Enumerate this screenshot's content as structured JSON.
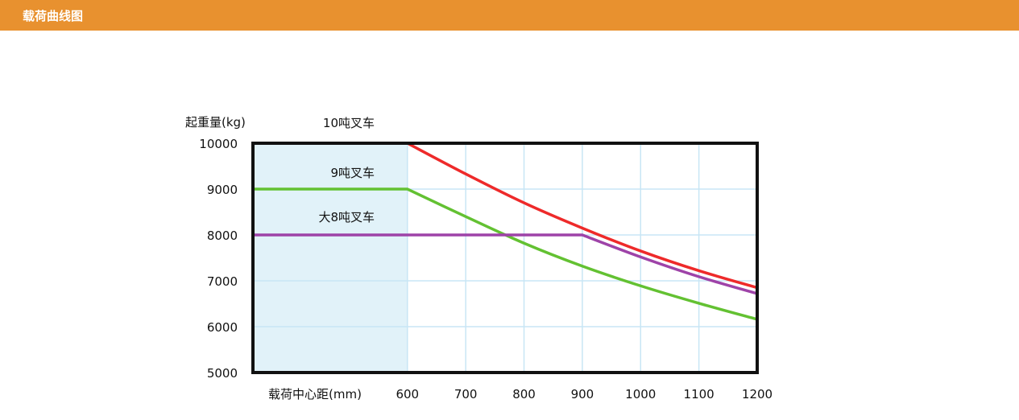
{
  "header": {
    "title": "载荷曲线图",
    "color": "#E8912F"
  },
  "chart_data": {
    "type": "line",
    "title": "",
    "xlabel": "载荷中心距(mm)",
    "ylabel": "起重量(kg)",
    "xlim": [
      335,
      1200
    ],
    "ylim": [
      5000,
      10000
    ],
    "xticks": [
      600,
      700,
      800,
      900,
      1000,
      1100,
      1200
    ],
    "yticks": [
      5000,
      6000,
      7000,
      8000,
      9000,
      10000
    ],
    "grid": true,
    "shaded_region": {
      "x": [
        335,
        600
      ],
      "color": "#E1F2F9"
    },
    "series": [
      {
        "name": "10吨叉车",
        "color": "#EE2A2A",
        "x": [
          335,
          600,
          700,
          800,
          900,
          1000,
          1100,
          1200
        ],
        "y": [
          10000,
          10000,
          9330,
          8700,
          8150,
          7650,
          7220,
          6850
        ]
      },
      {
        "name": "9吨叉车",
        "color": "#63C132",
        "x": [
          335,
          600,
          700,
          800,
          900,
          1000,
          1100,
          1200
        ],
        "y": [
          9000,
          9000,
          8400,
          7820,
          7320,
          6890,
          6510,
          6160
        ]
      },
      {
        "name": "大8吨叉车",
        "color": "#9E43A8",
        "x": [
          335,
          900,
          1000,
          1100,
          1200
        ],
        "y": [
          8000,
          8000,
          7520,
          7090,
          6720
        ]
      }
    ]
  }
}
